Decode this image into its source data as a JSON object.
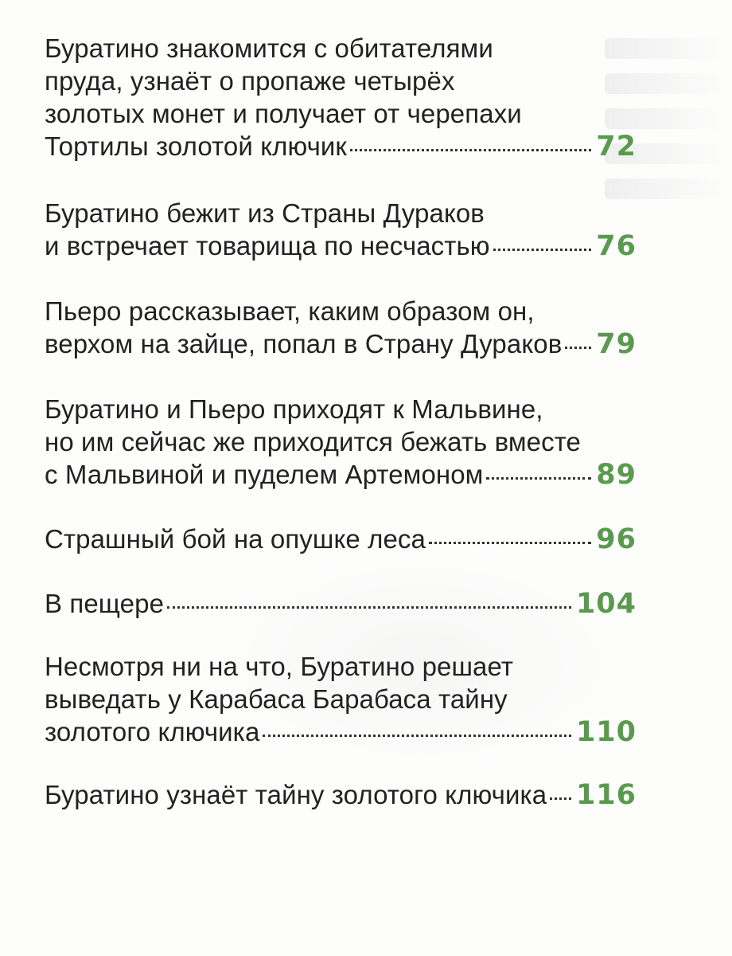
{
  "toc": {
    "entries": [
      {
        "lines": [
          "Буратино знакомится с обитателями",
          "пруда, узнаёт о пропаже четырёх",
          "золотых монет и получает от черепахи",
          "Тортилы золотой ключик"
        ],
        "page": "72"
      },
      {
        "lines": [
          "Буратино бежит из Страны Дураков",
          "и встречает товарища по несчастью"
        ],
        "page": "76"
      },
      {
        "lines": [
          "Пьеро рассказывает, каким образом он,",
          "верхом на зайце, попал в Страну Дураков"
        ],
        "page": "79"
      },
      {
        "lines": [
          "Буратино и Пьеро приходят к Мальвине,",
          "но им сейчас же приходится бежать вместе",
          "с Мальвиной и пуделем Артемоном"
        ],
        "page": "89"
      },
      {
        "lines": [
          "Страшный бой на опушке леса"
        ],
        "page": "96"
      },
      {
        "lines": [
          "В пещере"
        ],
        "page": "104"
      },
      {
        "lines": [
          "Несмотря ни на что, Буратино решает",
          "выведать у Карабаса Барабаса тайну",
          "золотого ключика"
        ],
        "page": "110"
      },
      {
        "lines": [
          "Буратино узнаёт тайну золотого ключика"
        ],
        "page": "116"
      }
    ]
  },
  "colors": {
    "page_number": "#5a9a4e",
    "text": "#222222"
  }
}
